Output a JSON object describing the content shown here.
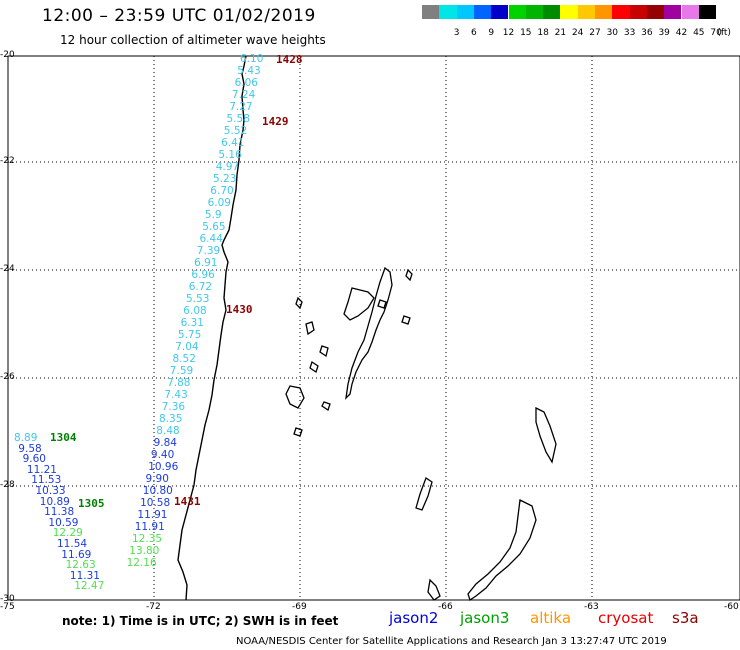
{
  "header": {
    "title": "12:00 – 23:59 UTC 01/02/2019",
    "subtitle": "12 hour collection of altimeter wave heights"
  },
  "colorbar": {
    "unit": "(ft)",
    "boxes": [
      {
        "label": "",
        "color": "#808080"
      },
      {
        "label": "3",
        "color": "#00e6e6"
      },
      {
        "label": "6",
        "color": "#00c8ff"
      },
      {
        "label": "9",
        "color": "#0064ff"
      },
      {
        "label": "12",
        "color": "#0000c8"
      },
      {
        "label": "15",
        "color": "#00d200"
      },
      {
        "label": "18",
        "color": "#00b400"
      },
      {
        "label": "21",
        "color": "#008c00"
      },
      {
        "label": "24",
        "color": "#ffff00"
      },
      {
        "label": "27",
        "color": "#ffc800"
      },
      {
        "label": "30",
        "color": "#ff9600"
      },
      {
        "label": "33",
        "color": "#ff0000"
      },
      {
        "label": "36",
        "color": "#c80000"
      },
      {
        "label": "39",
        "color": "#960000"
      },
      {
        "label": "42",
        "color": "#a000a0"
      },
      {
        "label": "45",
        "color": "#e878e8"
      },
      {
        "label": "70",
        "color": "#000000"
      }
    ]
  },
  "axes": {
    "lat_ticks": [
      "-20",
      "-22",
      "-24",
      "-26",
      "-28",
      "-30"
    ],
    "lon_ticks": [
      "-75",
      "-72",
      "-69",
      "-66",
      "-63",
      "-60"
    ]
  },
  "track_times": [
    {
      "text": "1428",
      "color": "#8b0000"
    },
    {
      "text": "1429",
      "color": "#8b0000"
    },
    {
      "text": "1430",
      "color": "#8b0000"
    },
    {
      "text": "1431",
      "color": "#8b0000"
    },
    {
      "text": "1304",
      "color": "#008000"
    },
    {
      "text": "1305",
      "color": "#008000"
    }
  ],
  "swh": {
    "main_track": [
      {
        "v": "6.10",
        "c": "#40c8e8"
      },
      {
        "v": "5.43",
        "c": "#40c8e8"
      },
      {
        "v": "6.06",
        "c": "#40c8e8"
      },
      {
        "v": "7.24",
        "c": "#40c8e8"
      },
      {
        "v": "7.27",
        "c": "#40c8e8"
      },
      {
        "v": "5.58",
        "c": "#40c8e8"
      },
      {
        "v": "5.52",
        "c": "#40c8e8"
      },
      {
        "v": "6.41",
        "c": "#40c8e8"
      },
      {
        "v": "5.16",
        "c": "#40c8e8"
      },
      {
        "v": "4.97",
        "c": "#40c8e8"
      },
      {
        "v": "5.23",
        "c": "#40c8e8"
      },
      {
        "v": "6.70",
        "c": "#40c8e8"
      },
      {
        "v": "6.09",
        "c": "#40c8e8"
      },
      {
        "v": "5.9",
        "c": "#40c8e8"
      },
      {
        "v": "5.65",
        "c": "#40c8e8"
      },
      {
        "v": "6.44",
        "c": "#40c8e8"
      },
      {
        "v": "7.39",
        "c": "#40c8e8"
      },
      {
        "v": "6.91",
        "c": "#40c8e8"
      },
      {
        "v": "6.96",
        "c": "#40c8e8"
      },
      {
        "v": "6.72",
        "c": "#40c8e8"
      },
      {
        "v": "5.53",
        "c": "#40c8e8"
      },
      {
        "v": "6.08",
        "c": "#40c8e8"
      },
      {
        "v": "6.31",
        "c": "#40c8e8"
      },
      {
        "v": "5.75",
        "c": "#40c8e8"
      },
      {
        "v": "7.04",
        "c": "#40c8e8"
      },
      {
        "v": "8.52",
        "c": "#40c8e8"
      },
      {
        "v": "7.59",
        "c": "#40c8e8"
      },
      {
        "v": "7.88",
        "c": "#40c8e8"
      },
      {
        "v": "7.43",
        "c": "#40c8e8"
      },
      {
        "v": "7.36",
        "c": "#40c8e8"
      },
      {
        "v": "8.35",
        "c": "#40c8e8"
      },
      {
        "v": "8.48",
        "c": "#40c8e8"
      },
      {
        "v": "9.84",
        "c": "#1e3cdc"
      },
      {
        "v": "9.40",
        "c": "#1e3cdc"
      },
      {
        "v": "10.96",
        "c": "#1e3cdc"
      },
      {
        "v": "9.90",
        "c": "#1e3cdc"
      },
      {
        "v": "10.80",
        "c": "#1e3cdc"
      },
      {
        "v": "10.58",
        "c": "#1e3cdc"
      },
      {
        "v": "11.91",
        "c": "#1e3cdc"
      },
      {
        "v": "11.91",
        "c": "#1e3cdc"
      },
      {
        "v": "12.35",
        "c": "#50e050"
      },
      {
        "v": "13.80",
        "c": "#50e050"
      },
      {
        "v": "12.16",
        "c": "#50e050"
      }
    ],
    "west_track": [
      {
        "v": "8.89",
        "c": "#40c8e8"
      },
      {
        "v": "9.58",
        "c": "#1e3cdc"
      },
      {
        "v": "9.60",
        "c": "#1e3cdc"
      },
      {
        "v": "11.21",
        "c": "#1e3cdc"
      },
      {
        "v": "11.53",
        "c": "#1e3cdc"
      },
      {
        "v": "10.33",
        "c": "#1e3cdc"
      },
      {
        "v": "10.89",
        "c": "#1e3cdc"
      },
      {
        "v": "11.38",
        "c": "#1e3cdc"
      },
      {
        "v": "10.59",
        "c": "#1e3cdc"
      },
      {
        "v": "12.29",
        "c": "#50e050"
      },
      {
        "v": "11.54",
        "c": "#1e3cdc"
      },
      {
        "v": "11.69",
        "c": "#1e3cdc"
      },
      {
        "v": "12.63",
        "c": "#50e050"
      },
      {
        "v": "11.31",
        "c": "#1e3cdc"
      },
      {
        "v": "12.47",
        "c": "#50e050"
      }
    ]
  },
  "footer": {
    "note": "note: 1) Time is in UTC; 2) SWH is in feet",
    "credit": "NOAA/NESDIS Center for Satellite Applications and Research    Jan  3 13:27:47 UTC 2019",
    "satellites": [
      {
        "name": "jason2",
        "color": "#0000dc"
      },
      {
        "name": "jason3",
        "color": "#00a000"
      },
      {
        "name": "altika",
        "color": "#ff9600"
      },
      {
        "name": "cryosat",
        "color": "#e60000"
      },
      {
        "name": "s3a",
        "color": "#8b0000"
      }
    ]
  }
}
